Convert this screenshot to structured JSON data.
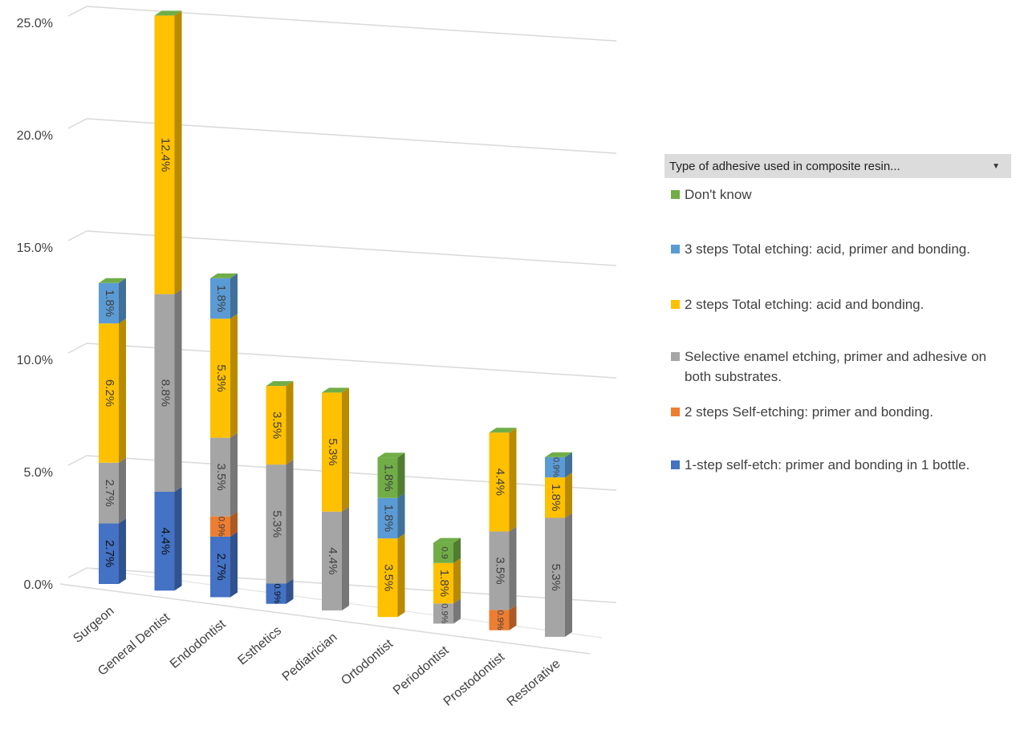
{
  "chart_data": {
    "type": "bar",
    "stacked": true,
    "three_d": true,
    "categories": [
      "Surgeon",
      "General Dentist",
      "Endodontist",
      "Esthetics",
      "Pediatrician",
      "Ortodontist",
      "Periodontist",
      "Prostodontist",
      "Restorative"
    ],
    "y_tick_labels": [
      "0.0%",
      "5.0%",
      "10.0%",
      "15.0%",
      "20.0%",
      "25.0%"
    ],
    "ylim": [
      0,
      25
    ],
    "grid": true,
    "legend_title": "Type of adhesive used in composite resin...",
    "legend_placement": "right",
    "series": [
      {
        "name": "1-step self-etch: primer and bonding in 1 bottle.",
        "color": "#4472C4",
        "values": [
          2.7,
          4.4,
          2.7,
          0.9,
          0,
          0,
          0,
          0,
          0
        ],
        "labels": [
          "2.7%",
          "4.4%",
          "2.7%",
          "0.9%",
          "",
          "",
          "",
          "",
          ""
        ]
      },
      {
        "name": "2 steps Self-etching: primer and bonding.",
        "color": "#ED7D31",
        "values": [
          0,
          0,
          0.9,
          0,
          0,
          0,
          0,
          0.9,
          0
        ],
        "labels": [
          "",
          "",
          "0.9%",
          "",
          "",
          "",
          "",
          "0.9%",
          ""
        ]
      },
      {
        "name": "Selective enamel etching, primer and adhesive on both substrates.",
        "color": "#A5A5A5",
        "values": [
          2.7,
          8.8,
          3.5,
          5.3,
          4.4,
          0,
          0.9,
          3.5,
          5.3
        ],
        "labels": [
          "2.7%",
          "8.8%",
          "3.5%",
          "5.3%",
          "4.4%",
          "",
          "0.9%",
          "3.5%",
          "5.3%"
        ]
      },
      {
        "name": "2 steps Total etching: acid and bonding.",
        "color": "#FFC000",
        "values": [
          6.2,
          12.4,
          5.3,
          3.5,
          5.3,
          3.5,
          1.8,
          4.4,
          1.8
        ],
        "labels": [
          "6.2%",
          "12.4%",
          "5.3%",
          "3.5%",
          "5.3%",
          "3.5%",
          "1.8%",
          "4.4%",
          "1.8%"
        ]
      },
      {
        "name": "3 steps Total etching: acid, primer and bonding.",
        "color": "#5B9BD5",
        "values": [
          1.8,
          0,
          1.8,
          0,
          0,
          1.8,
          0,
          0,
          0.9
        ],
        "labels": [
          "1.8%",
          "",
          "1.8%",
          "",
          "",
          "1.8%",
          "",
          "",
          "0.9%"
        ]
      },
      {
        "name": "Don't know",
        "color": "#70AD47",
        "values": [
          0,
          0,
          0,
          0,
          0,
          1.8,
          0.9,
          0,
          0
        ],
        "labels": [
          "",
          "",
          "",
          "",
          "",
          "1.8%",
          "0.9",
          "",
          ""
        ]
      }
    ]
  },
  "legend": {
    "header": "Type of adhesive used in composite resin...",
    "dropdown_arrow": "▼",
    "items": [
      {
        "label": "Don't know",
        "color": "#70AD47"
      },
      {
        "label": "3 steps Total etching: acid, primer and bonding.",
        "color": "#5B9BD5"
      },
      {
        "label": "2 steps Total etching: acid and bonding.",
        "color": "#FFC000"
      },
      {
        "label": "Selective enamel etching, primer and adhesive on both substrates.",
        "color": "#A5A5A5"
      },
      {
        "label": "2 steps Self-etching: primer and bonding.",
        "color": "#ED7D31"
      },
      {
        "label": "1-step self-etch: primer and bonding in 1 bottle.",
        "color": "#4472C4"
      }
    ]
  }
}
